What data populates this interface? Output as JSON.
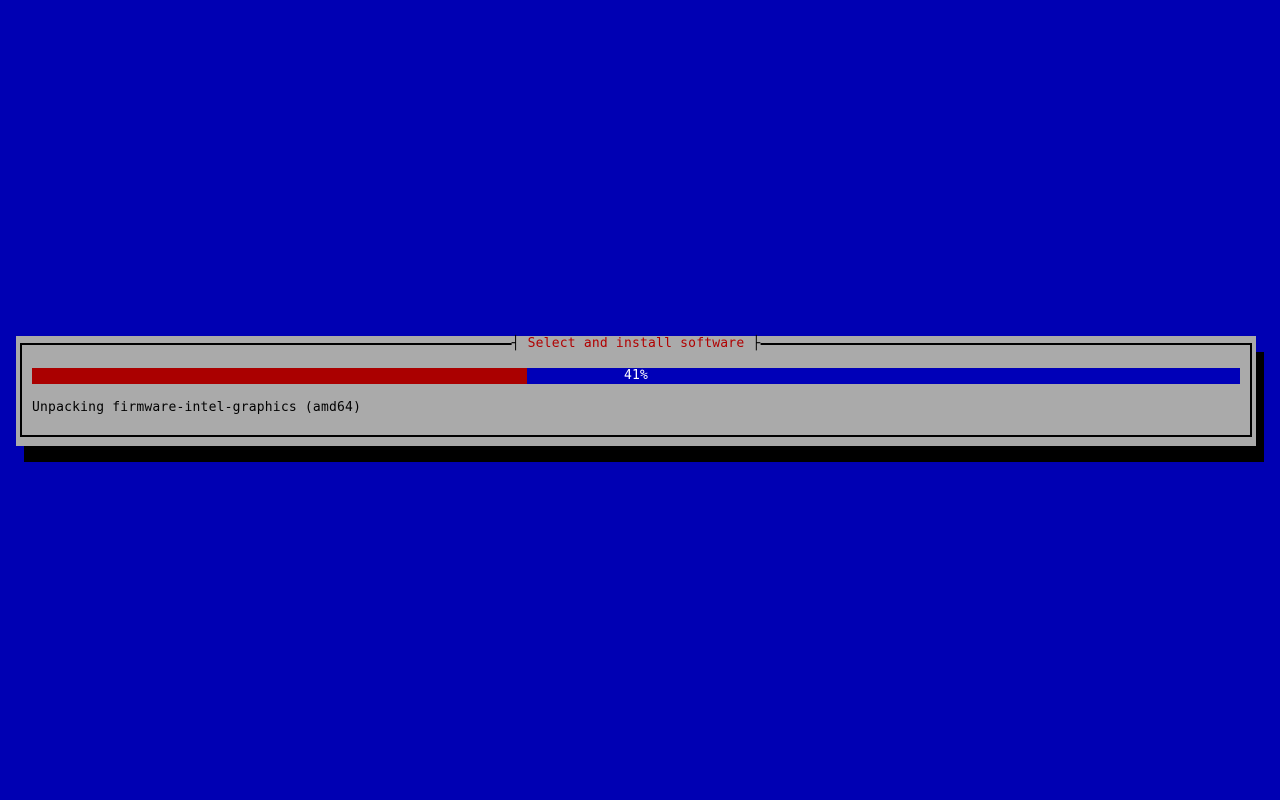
{
  "screen": {
    "background_color": "#0000b3"
  },
  "dialog": {
    "title": "Select and install software",
    "title_left_tick": "┤",
    "title_right_tick": "├",
    "title_color": "#b00000",
    "background_color": "#aaaaaa",
    "border_color": "#000000",
    "shadow_color": "#000000",
    "progress": {
      "percent": 41,
      "label": "41%",
      "fill_color": "#aa0000",
      "empty_color": "#0000b8",
      "label_color": "#ffffff"
    },
    "status_text": "Unpacking firmware-intel-graphics (amd64)"
  }
}
